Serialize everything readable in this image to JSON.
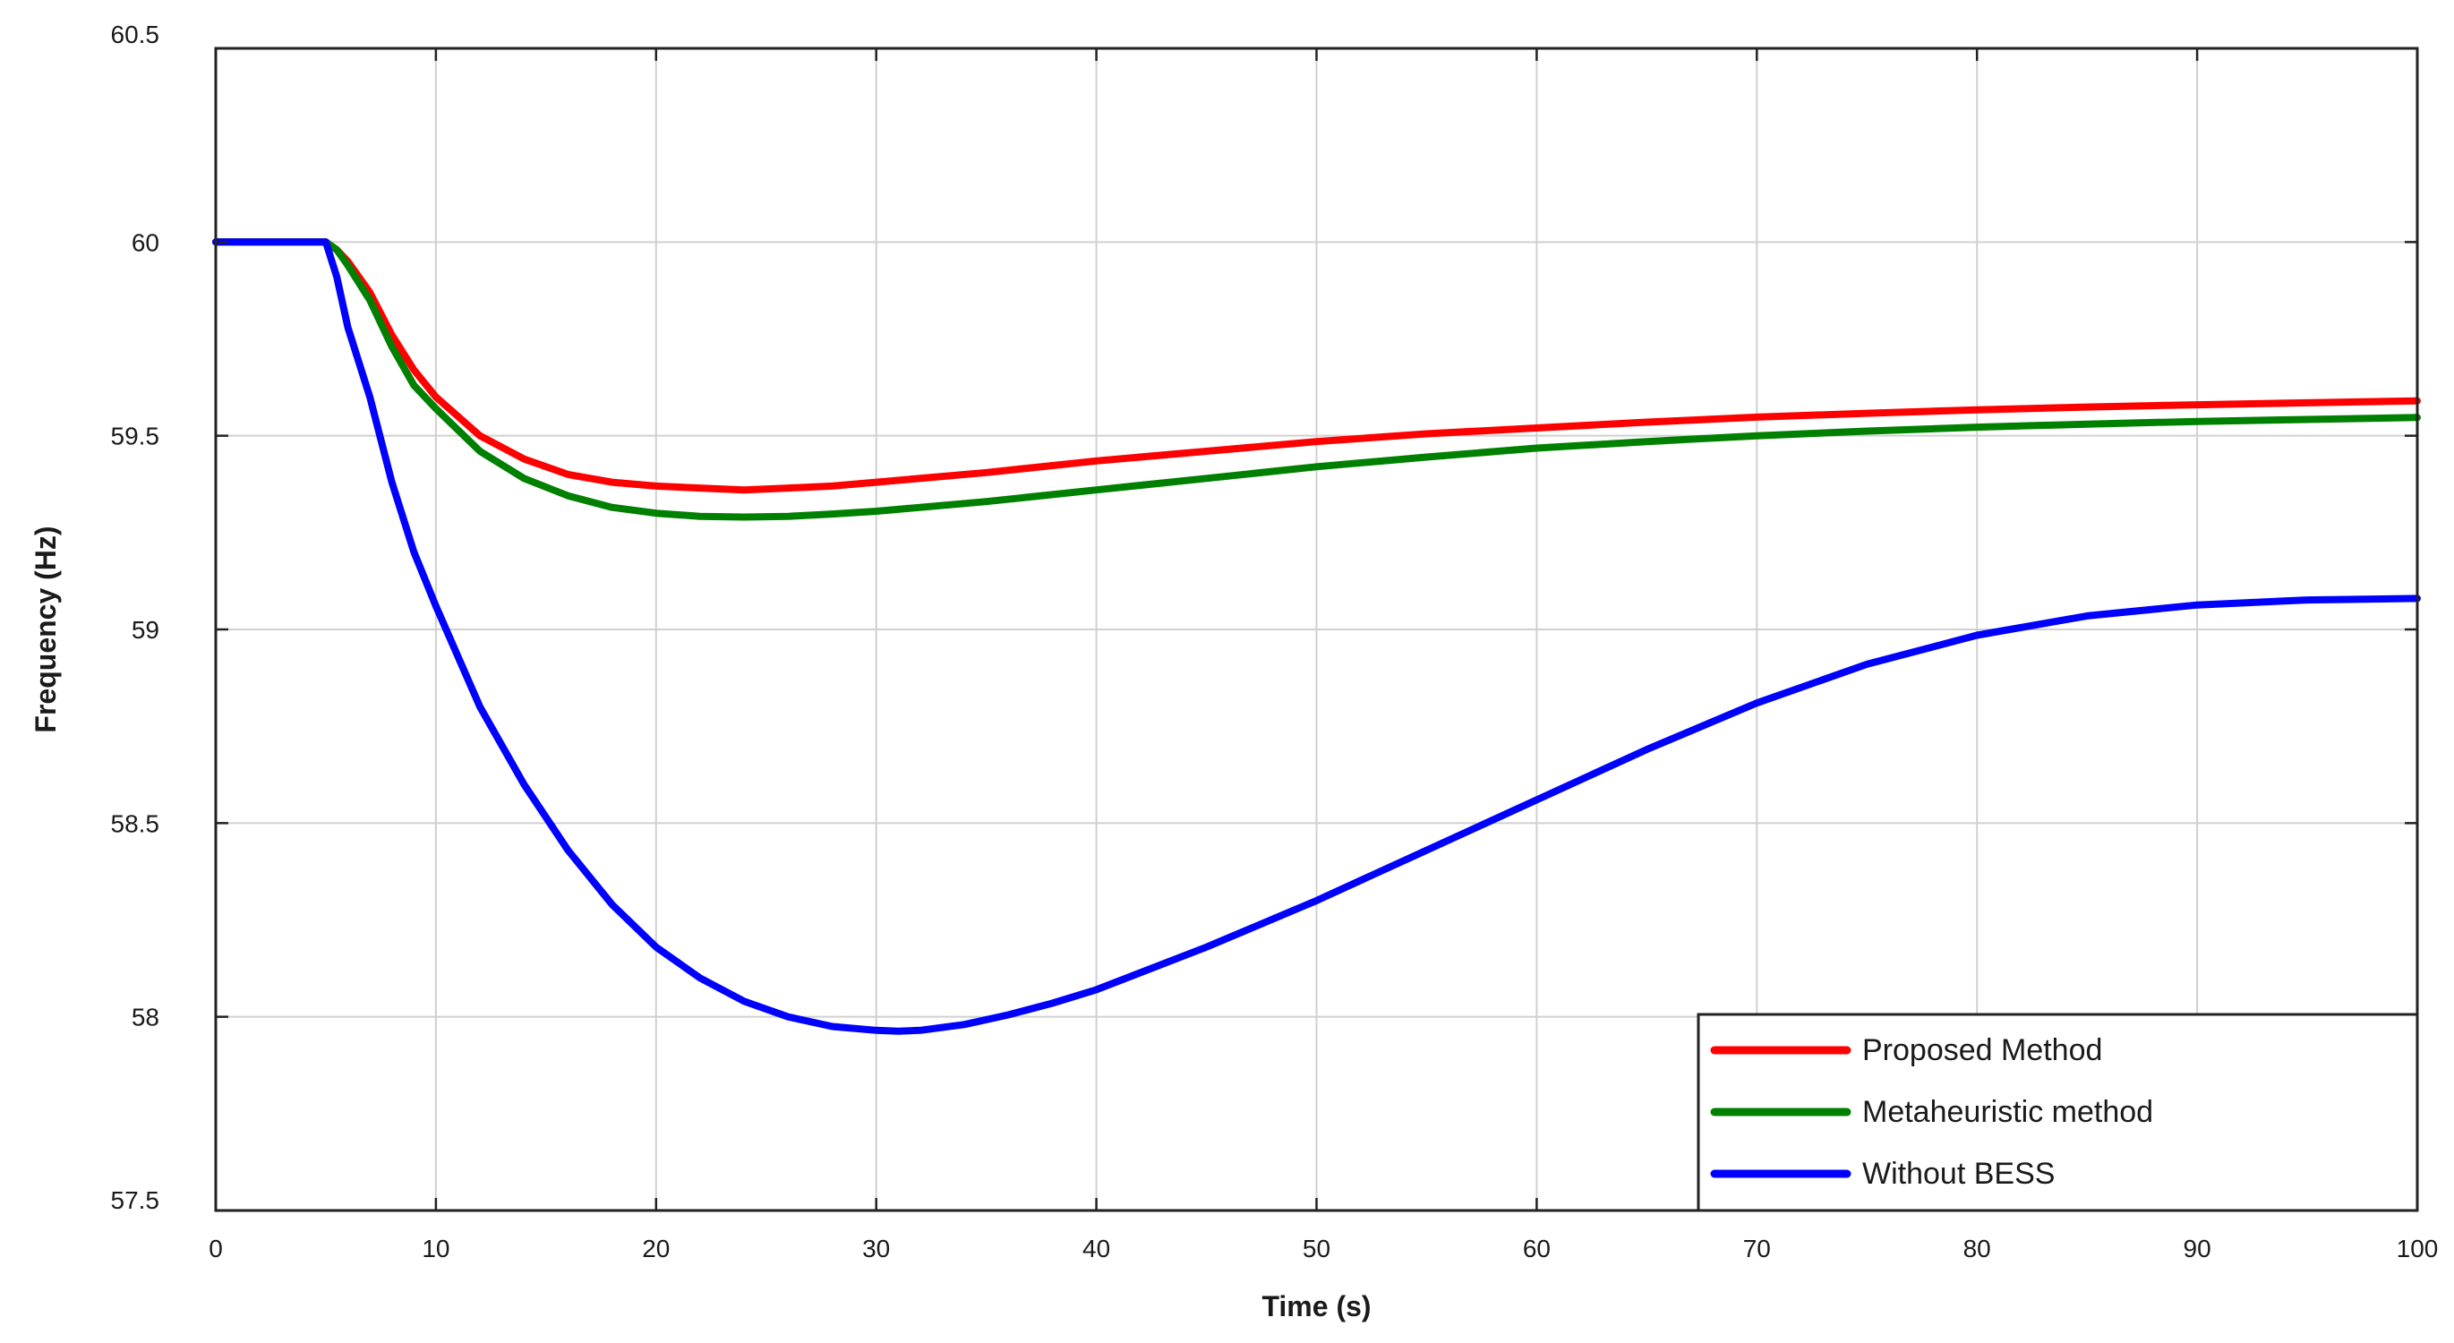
{
  "chart_data": {
    "type": "line",
    "title": "",
    "xlabel": "Time (s)",
    "ylabel": "Frequency (Hz)",
    "xlim": [
      0,
      100
    ],
    "ylim": [
      57.5,
      60.5
    ],
    "xticks": [
      0,
      10,
      20,
      30,
      40,
      50,
      60,
      70,
      80,
      90,
      100
    ],
    "yticks": [
      57.5,
      58,
      58.5,
      59,
      59.5,
      60,
      60.5
    ],
    "xtick_labels": [
      "0",
      "10",
      "20",
      "30",
      "40",
      "50",
      "60",
      "70",
      "80",
      "90",
      "100"
    ],
    "ytick_labels": [
      "57.5",
      "58",
      "58.5",
      "59",
      "59.5",
      "60",
      "60.5"
    ],
    "grid": true,
    "legend_position": "bottom-right",
    "series": [
      {
        "name": "Proposed Method",
        "color": "#ff0000",
        "x": [
          0,
          5,
          5.5,
          6,
          7,
          8,
          9,
          10,
          12,
          14,
          16,
          18,
          20,
          22,
          24,
          26,
          28,
          30,
          35,
          40,
          45,
          50,
          55,
          60,
          65,
          70,
          75,
          80,
          85,
          90,
          95,
          100
        ],
        "y": [
          60.0,
          60.0,
          59.98,
          59.95,
          59.87,
          59.76,
          59.67,
          59.6,
          59.5,
          59.44,
          59.4,
          59.38,
          59.37,
          59.365,
          59.36,
          59.365,
          59.37,
          59.38,
          59.405,
          59.435,
          59.46,
          59.485,
          59.505,
          59.52,
          59.535,
          59.548,
          59.558,
          59.567,
          59.574,
          59.58,
          59.585,
          59.59
        ]
      },
      {
        "name": "Metaheuristic method",
        "color": "#008000",
        "x": [
          0,
          5,
          5.5,
          6,
          7,
          8,
          9,
          10,
          12,
          14,
          16,
          18,
          20,
          22,
          24,
          26,
          28,
          30,
          35,
          40,
          45,
          50,
          55,
          60,
          65,
          70,
          75,
          80,
          85,
          90,
          95,
          100
        ],
        "y": [
          60.0,
          60.0,
          59.98,
          59.94,
          59.85,
          59.73,
          59.63,
          59.57,
          59.46,
          59.39,
          59.345,
          59.315,
          59.3,
          59.292,
          59.29,
          59.292,
          59.298,
          59.305,
          59.33,
          59.36,
          59.39,
          59.42,
          59.445,
          59.468,
          59.485,
          59.5,
          59.512,
          59.522,
          59.53,
          59.537,
          59.542,
          59.547
        ]
      },
      {
        "name": "Without BESS",
        "color": "#0000ff",
        "x": [
          0,
          5,
          5.5,
          6,
          7,
          8,
          9,
          10,
          12,
          14,
          16,
          18,
          20,
          22,
          24,
          26,
          28,
          30,
          31,
          32,
          34,
          36,
          38,
          40,
          45,
          50,
          55,
          60,
          65,
          70,
          75,
          80,
          85,
          90,
          95,
          100
        ],
        "y": [
          60.0,
          60.0,
          59.91,
          59.78,
          59.6,
          59.38,
          59.2,
          59.06,
          58.8,
          58.6,
          58.43,
          58.29,
          58.18,
          58.1,
          58.04,
          58.0,
          57.975,
          57.965,
          57.963,
          57.965,
          57.98,
          58.005,
          58.035,
          58.07,
          58.18,
          58.3,
          58.43,
          58.56,
          58.69,
          58.81,
          58.91,
          58.985,
          59.035,
          59.063,
          59.076,
          59.08
        ]
      }
    ]
  }
}
